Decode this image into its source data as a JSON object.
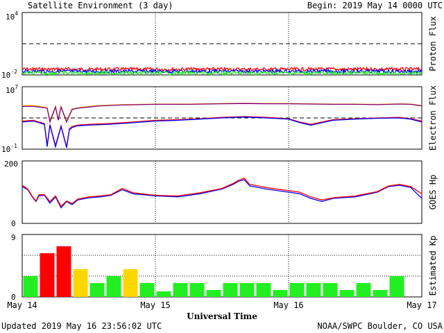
{
  "header": {
    "title": "Satellite Environment (3 day)",
    "begin": "Begin:  2019 May 14 0000 UTC"
  },
  "footer": {
    "updated": "Updated 2019 May 16 23:56:02 UTC",
    "credit": "NOAA/SWPC Boulder, CO USA"
  },
  "xaxis": {
    "title": "Universal Time",
    "ticks": [
      "May 14",
      "May 15",
      "May 16",
      "May 17"
    ]
  },
  "panels": {
    "proton": {
      "label": "Proton Flux",
      "tick_top": "10",
      "tick_top_exp": "4",
      "tick_bottom": "10",
      "tick_bottom_exp": "-2"
    },
    "electron": {
      "label": "Electron Flux",
      "tick_top": "10",
      "tick_top_exp": "7",
      "tick_bottom": "10",
      "tick_bottom_exp": "-1"
    },
    "goes": {
      "label": "GOES Hp",
      "tick_top": "200",
      "tick_bottom": "0"
    },
    "kp": {
      "label": "Estimated Kp",
      "tick_top": "9",
      "tick_bottom": "0"
    }
  },
  "colors": {
    "red": "#ff0000",
    "blue": "#0000ff",
    "green": "#22ee22",
    "orange": "#ffa500",
    "purple": "#800080",
    "yellow": "#ffd700"
  },
  "chart_data": [
    {
      "type": "line",
      "panel": "proton",
      "yscale": "log",
      "ylim": [
        0.01,
        10000
      ],
      "xlim_hours": [
        0,
        72
      ],
      "threshold": 10,
      "series": [
        {
          "color": "red",
          "approx_level": 0.035
        },
        {
          "color": "blue",
          "approx_level": 0.022
        },
        {
          "color": "green",
          "approx_level": 0.015
        }
      ]
    },
    {
      "type": "line",
      "panel": "electron",
      "yscale": "log",
      "ylim": [
        0.1,
        10000000
      ],
      "xlim_hours": [
        0,
        72
      ],
      "threshold": 1000,
      "series": [
        {
          "color": "orange",
          "x": [
            0,
            2,
            4,
            4.5,
            5,
            6,
            6.5,
            7,
            8,
            8.5,
            9,
            10,
            12,
            14,
            18,
            24,
            30,
            36,
            40,
            44,
            48,
            52,
            56,
            60,
            64,
            68,
            70,
            72
          ],
          "y": [
            40000,
            40000,
            25000,
            20000,
            500,
            30000,
            800,
            30000,
            400,
            2500,
            15000,
            20000,
            30000,
            40000,
            50000,
            60000,
            60000,
            70000,
            75000,
            70000,
            70000,
            65000,
            60000,
            60000,
            55000,
            65000,
            60000,
            40000
          ]
        },
        {
          "color": "purple",
          "x": [
            0,
            2,
            4,
            4.5,
            5,
            6,
            6.5,
            7,
            8,
            8.5,
            9,
            10,
            12,
            14,
            18,
            24,
            30,
            36,
            40,
            44,
            48,
            52,
            56,
            60,
            64,
            68,
            70,
            72
          ],
          "y": [
            30000,
            30000,
            20000,
            18000,
            300,
            25000,
            500,
            25000,
            300,
            2000,
            12000,
            18000,
            25000,
            35000,
            45000,
            55000,
            55000,
            65000,
            70000,
            65000,
            65000,
            60000,
            55000,
            55000,
            50000,
            60000,
            55000,
            35000
          ]
        },
        {
          "color": "red",
          "x": [
            0,
            2,
            3,
            4,
            4.5,
            5,
            6,
            7,
            8,
            8.5,
            9,
            10,
            12,
            16,
            20,
            24,
            28,
            32,
            36,
            40,
            44,
            48,
            50,
            52,
            56,
            60,
            64,
            68,
            70,
            72
          ],
          "y": [
            400,
            500,
            300,
            200,
            0.3,
            150,
            0.3,
            100,
            0.2,
            40,
            80,
            120,
            150,
            200,
            300,
            500,
            600,
            800,
            1200,
            1500,
            1200,
            800,
            300,
            150,
            600,
            800,
            1000,
            1200,
            800,
            400
          ]
        },
        {
          "color": "blue",
          "x": [
            0,
            2,
            3,
            4,
            4.5,
            5,
            6,
            7,
            8,
            8.5,
            9,
            10,
            12,
            16,
            20,
            24,
            28,
            32,
            36,
            40,
            44,
            48,
            50,
            52,
            56,
            60,
            64,
            68,
            70,
            72
          ],
          "y": [
            300,
            400,
            250,
            150,
            0.2,
            120,
            0.2,
            80,
            0.15,
            30,
            60,
            100,
            120,
            160,
            250,
            400,
            500,
            700,
            1000,
            1300,
            1000,
            700,
            250,
            120,
            500,
            700,
            900,
            1000,
            700,
            300
          ]
        }
      ]
    },
    {
      "type": "line",
      "panel": "goes",
      "ylim": [
        0,
        200
      ],
      "xlim_hours": [
        0,
        72
      ],
      "series": [
        {
          "color": "blue",
          "x": [
            0,
            1,
            2,
            2.5,
            3,
            4,
            5,
            6,
            7,
            8,
            9,
            10,
            12,
            14,
            16,
            18,
            20,
            24,
            28,
            32,
            36,
            38,
            39,
            40,
            41,
            44,
            48,
            50,
            52,
            54,
            56,
            60,
            64,
            66,
            68,
            70,
            72
          ],
          "y": [
            118,
            108,
            80,
            70,
            88,
            90,
            65,
            85,
            50,
            70,
            60,
            75,
            82,
            85,
            90,
            108,
            95,
            88,
            85,
            95,
            110,
            125,
            135,
            140,
            120,
            110,
            100,
            95,
            80,
            70,
            80,
            85,
            100,
            118,
            122,
            115,
            80
          ]
        },
        {
          "color": "red",
          "x": [
            0,
            1,
            2,
            2.5,
            3,
            4,
            5,
            6,
            7,
            8,
            9,
            10,
            12,
            14,
            16,
            18,
            20,
            24,
            28,
            32,
            36,
            38,
            39,
            40,
            41,
            44,
            48,
            50,
            52,
            54,
            56,
            60,
            64,
            66,
            68,
            70,
            72
          ],
          "y": [
            122,
            110,
            82,
            72,
            92,
            92,
            70,
            88,
            55,
            72,
            63,
            78,
            85,
            88,
            92,
            112,
            98,
            90,
            88,
            98,
            112,
            128,
            138,
            145,
            125,
            115,
            105,
            100,
            85,
            75,
            82,
            88,
            102,
            120,
            125,
            118,
            95
          ]
        }
      ]
    },
    {
      "type": "bar",
      "panel": "kp",
      "ylim": [
        0,
        9
      ],
      "categories": [
        "14-00",
        "14-03",
        "14-06",
        "14-09",
        "14-12",
        "14-15",
        "14-18",
        "14-21",
        "15-00",
        "15-03",
        "15-06",
        "15-09",
        "15-12",
        "15-15",
        "15-18",
        "15-21",
        "16-00",
        "16-03",
        "16-06",
        "16-09",
        "16-12",
        "16-15",
        "16-18",
        "16-21"
      ],
      "values": [
        3,
        6.3,
        7.3,
        4,
        2,
        3,
        4,
        2,
        0.8,
        2,
        2,
        1,
        2,
        2,
        2,
        1,
        2,
        2,
        2,
        1,
        2,
        1,
        3,
        0
      ],
      "colors": [
        "green",
        "red",
        "red",
        "yellow",
        "green",
        "green",
        "yellow",
        "green",
        "green",
        "green",
        "green",
        "green",
        "green",
        "green",
        "green",
        "green",
        "green",
        "green",
        "green",
        "green",
        "green",
        "green",
        "green",
        "green"
      ]
    }
  ]
}
